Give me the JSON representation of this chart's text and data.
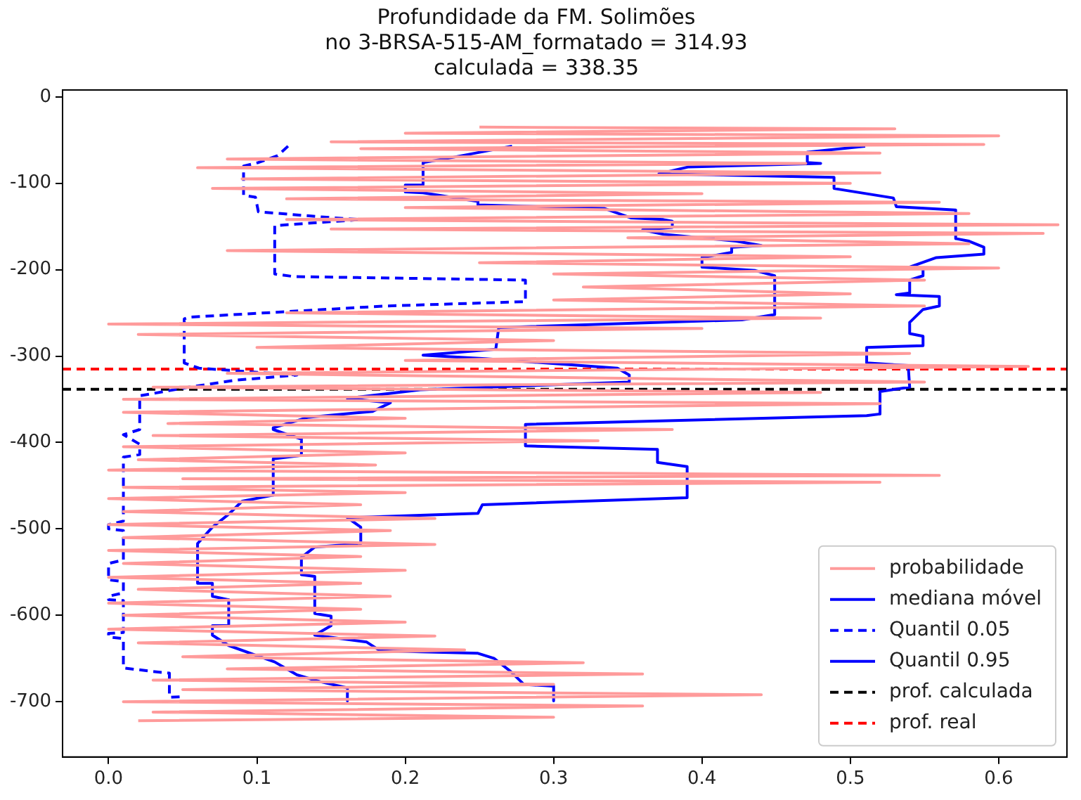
{
  "chart_data": {
    "type": "line",
    "title": "Profundidade da FM. Solimões\nno 3-BRSA-515-AM_formatado = 314.93\ncalculada = 338.35",
    "xlim": [
      -0.031,
      0.646
    ],
    "xticks": [
      {
        "value": 0,
        "label": "0.0"
      },
      0.1,
      0.2,
      0.3,
      0.4,
      0.5,
      0.6
    ],
    "ylim": [
      -764,
      8
    ],
    "yticks": [
      -700,
      -600,
      -500,
      -400,
      -300,
      -200,
      -100,
      0
    ],
    "grid": false,
    "legend": "bottom right",
    "marker": "none",
    "series": [
      {
        "name": "probabilidade",
        "color": "#ff9b9b",
        "line_style": "solid",
        "x": [
          0.25,
          0.53,
          0.2,
          0.6,
          0.15,
          0.59,
          0.17,
          0.52,
          0.08,
          0.47,
          0.06,
          0.52,
          0.09,
          0.5,
          0.07,
          0.4,
          0.12,
          0.56,
          0.2,
          0.58,
          0.12,
          0.64,
          0.15,
          0.63,
          0.35,
          0.58,
          0.08,
          0.5,
          0.25,
          0.6,
          0.3,
          0.55,
          0.32,
          0.5,
          0.3,
          0.55,
          0.12,
          0.48,
          0.0,
          0.4,
          0.02,
          0.3,
          0.1,
          0.54,
          0.2,
          0.62,
          0.08,
          0.55,
          0.03,
          0.48,
          0.01,
          0.52,
          0.01,
          0.2,
          0.04,
          0.38,
          0.03,
          0.33,
          0.01,
          0.2,
          0.02,
          0.18,
          0.0,
          0.56,
          0.05,
          0.52,
          0.01,
          0.2,
          0.0,
          0.17,
          0.01,
          0.22,
          0.0,
          0.19,
          0.01,
          0.22,
          0.0,
          0.17,
          0.01,
          0.2,
          0.0,
          0.17,
          0.02,
          0.19,
          0.0,
          0.17,
          0.01,
          0.2,
          0.0,
          0.22,
          0.02,
          0.24,
          0.05,
          0.32,
          0.08,
          0.36,
          0.03,
          0.3,
          0.05,
          0.44,
          0.01,
          0.36,
          0.03,
          0.3,
          0.02
        ],
        "values": [
          -35,
          -37,
          -42,
          -45,
          -52,
          -55,
          -60,
          -65,
          -72,
          -77,
          -82,
          -88,
          -95,
          -100,
          -106,
          -112,
          -118,
          -122,
          -128,
          -135,
          -142,
          -148,
          -153,
          -158,
          -163,
          -170,
          -178,
          -185,
          -192,
          -198,
          -205,
          -212,
          -220,
          -228,
          -235,
          -242,
          -250,
          -256,
          -263,
          -268,
          -275,
          -282,
          -290,
          -297,
          -305,
          -312,
          -320,
          -330,
          -336,
          -342,
          -350,
          -355,
          -365,
          -372,
          -378,
          -385,
          -392,
          -398,
          -405,
          -412,
          -420,
          -426,
          -432,
          -438,
          -442,
          -446,
          -452,
          -458,
          -465,
          -472,
          -480,
          -488,
          -495,
          -502,
          -510,
          -518,
          -525,
          -532,
          -540,
          -548,
          -556,
          -563,
          -570,
          -578,
          -586,
          -593,
          -600,
          -608,
          -616,
          -624,
          -632,
          -640,
          -648,
          -655,
          -662,
          -668,
          -675,
          -680,
          -686,
          -692,
          -700,
          -705,
          -712,
          -718,
          -722
        ]
      },
      {
        "name": "mediana móvel",
        "color": "#0000ff",
        "line_style": "solid",
        "x": [
          0.272,
          0.232,
          0.212,
          0.212,
          0.2,
          0.2,
          0.212,
          0.249,
          0.249,
          0.334,
          0.352,
          0.374,
          0.38,
          0.38,
          0.36,
          0.374,
          0.423,
          0.44,
          0.42,
          0.42,
          0.4,
          0.4,
          0.436,
          0.449,
          0.449,
          0.427,
          0.263,
          0.261,
          0.212,
          0.254,
          0.343,
          0.351,
          0.351,
          0.21,
          0.161,
          0.19,
          0.178,
          0.134,
          0.111,
          0.111,
          0.121,
          0.13,
          0.13,
          0.111,
          0.111,
          0.09,
          0.081,
          0.07,
          0.06,
          0.06,
          0.07,
          0.07,
          0.081,
          0.081,
          0.07,
          0.07,
          0.081,
          0.099,
          0.112,
          0.127,
          0.143,
          0.161,
          0.161
        ],
        "values": [
          -57,
          -70,
          -76,
          -102,
          -102,
          -110,
          -111,
          -121,
          -125,
          -129,
          -140,
          -142,
          -144,
          -151,
          -154,
          -159,
          -167,
          -172,
          -174,
          -180,
          -186,
          -197,
          -201,
          -207,
          -252,
          -258,
          -267,
          -292,
          -299,
          -303,
          -314,
          -322,
          -330,
          -339,
          -349,
          -354,
          -364,
          -371,
          -383,
          -385,
          -391,
          -396,
          -415,
          -419,
          -461,
          -468,
          -483,
          -498,
          -517,
          -563,
          -563,
          -578,
          -582,
          -612,
          -612,
          -623,
          -635,
          -646,
          -654,
          -669,
          -677,
          -684,
          -699
        ]
      },
      {
        "name": "Quantil 0.05",
        "color": "#0000ff",
        "line_style": "dashed",
        "x": [
          0.121,
          0.114,
          0.101,
          0.091,
          0.091,
          0.099,
          0.101,
          0.152,
          0.17,
          0.112,
          0.112,
          0.125,
          0.281,
          0.281,
          0.187,
          0.054,
          0.051,
          0.051,
          0.061,
          0.127,
          0.085,
          0.054,
          0.021,
          0.021,
          0.01,
          0.021,
          0.021,
          0.01,
          0.01,
          0.0,
          0.0,
          0.01,
          0.01,
          0.0,
          0.0,
          0.01,
          0.01,
          0.0,
          0.0,
          0.01,
          0.01,
          0.0,
          0.0,
          0.01,
          0.01,
          0.03,
          0.041,
          0.041,
          0.051
        ],
        "values": [
          -57,
          -68,
          -76,
          -80,
          -114,
          -116,
          -133,
          -140,
          -142,
          -149,
          -205,
          -208,
          -212,
          -237,
          -242,
          -255,
          -257,
          -308,
          -314,
          -322,
          -328,
          -336,
          -346,
          -385,
          -391,
          -402,
          -414,
          -417,
          -491,
          -495,
          -500,
          -502,
          -536,
          -540,
          -559,
          -561,
          -574,
          -578,
          -582,
          -583,
          -620,
          -621,
          -625,
          -627,
          -661,
          -665,
          -667,
          -695,
          -694
        ]
      },
      {
        "name": "Quantil 0.95",
        "color": "#0000ff",
        "line_style": "solid",
        "x": [
          0.51,
          0.471,
          0.471,
          0.48,
          0.391,
          0.371,
          0.489,
          0.489,
          0.529,
          0.531,
          0.571,
          0.571,
          0.58,
          0.59,
          0.59,
          0.558,
          0.54,
          0.549,
          0.549,
          0.54,
          0.54,
          0.531,
          0.56,
          0.56,
          0.549,
          0.54,
          0.54,
          0.549,
          0.549,
          0.511,
          0.511,
          0.539,
          0.54,
          0.52,
          0.52,
          0.511,
          0.281,
          0.281,
          0.37,
          0.37,
          0.39,
          0.39,
          0.252,
          0.249,
          0.161,
          0.17,
          0.17,
          0.139,
          0.13,
          0.13,
          0.139,
          0.139,
          0.15,
          0.15,
          0.139,
          0.174,
          0.183,
          0.249,
          0.26,
          0.271,
          0.28,
          0.3,
          0.3
        ],
        "values": [
          -57,
          -64,
          -76,
          -77,
          -81,
          -89,
          -93,
          -106,
          -117,
          -127,
          -131,
          -164,
          -167,
          -174,
          -182,
          -186,
          -197,
          -198,
          -207,
          -212,
          -227,
          -229,
          -231,
          -242,
          -246,
          -261,
          -274,
          -277,
          -288,
          -290,
          -308,
          -311,
          -336,
          -341,
          -367,
          -369,
          -379,
          -404,
          -408,
          -423,
          -428,
          -464,
          -472,
          -482,
          -487,
          -498,
          -517,
          -521,
          -533,
          -553,
          -555,
          -598,
          -601,
          -612,
          -623,
          -631,
          -641,
          -644,
          -650,
          -665,
          -680,
          -682,
          -699
        ]
      }
    ],
    "ref_lines": [
      {
        "axis": "y",
        "value": -338.35,
        "label": "prof. calculada",
        "color": "#000000",
        "line_style": "dashed"
      },
      {
        "axis": "y",
        "value": -314.93,
        "label": "prof. real",
        "color": "#ff0000",
        "line_style": "dashed"
      }
    ]
  }
}
